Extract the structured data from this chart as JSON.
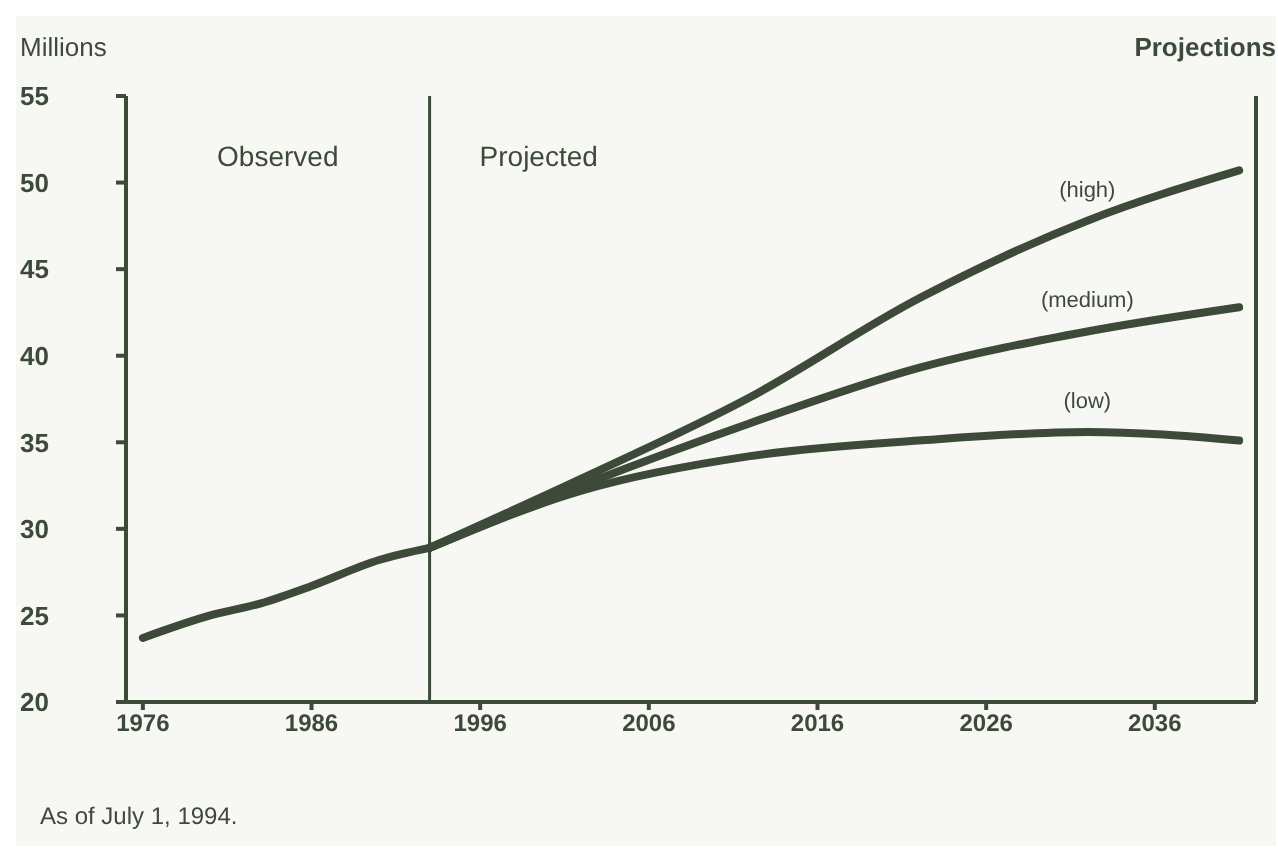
{
  "chart_data": {
    "type": "line",
    "ylabel": "Millions",
    "legend_title": "Projections",
    "xlim": [
      1975,
      2042
    ],
    "xticks": [
      1976,
      1986,
      1996,
      2006,
      2016,
      2026,
      2036
    ],
    "ylim": [
      20,
      55
    ],
    "yticks": [
      20,
      25,
      30,
      35,
      40,
      45,
      50,
      55
    ],
    "series": [
      {
        "color": "#3d4a3a",
        "x": [
          1976,
          1980,
          1983,
          1986,
          1990,
          1993
        ],
        "values": [
          23.7,
          25,
          25.7,
          26.7,
          28.2,
          28.9
        ]
      },
      {
        "name": "(high)",
        "color": "#3d4a3a",
        "x": [
          1993,
          2002,
          2012,
          2022,
          2032,
          2041
        ],
        "values": [
          28.9,
          32.9,
          37.6,
          43.3,
          47.8,
          50.7
        ]
      },
      {
        "name": "(medium)",
        "color": "#3d4a3a",
        "x": [
          1993,
          2002,
          2012,
          2022,
          2032,
          2041
        ],
        "values": [
          28.9,
          32.5,
          36.1,
          39.3,
          41.4,
          42.8
        ]
      },
      {
        "name": "(low)",
        "color": "#3d4a3a",
        "x": [
          1993,
          2002,
          2012,
          2022,
          2032,
          2041
        ],
        "values": [
          28.9,
          32.2,
          34.2,
          35.1,
          35.6,
          35.1
        ]
      }
    ],
    "ref_lines": [
      {
        "axis": "x",
        "value": 1993,
        "color": "#3d4a3a"
      }
    ],
    "annotations": [
      "Observed",
      "Projected",
      "As of July 1, 1994."
    ],
    "marker": "none",
    "line_style": "solid"
  }
}
